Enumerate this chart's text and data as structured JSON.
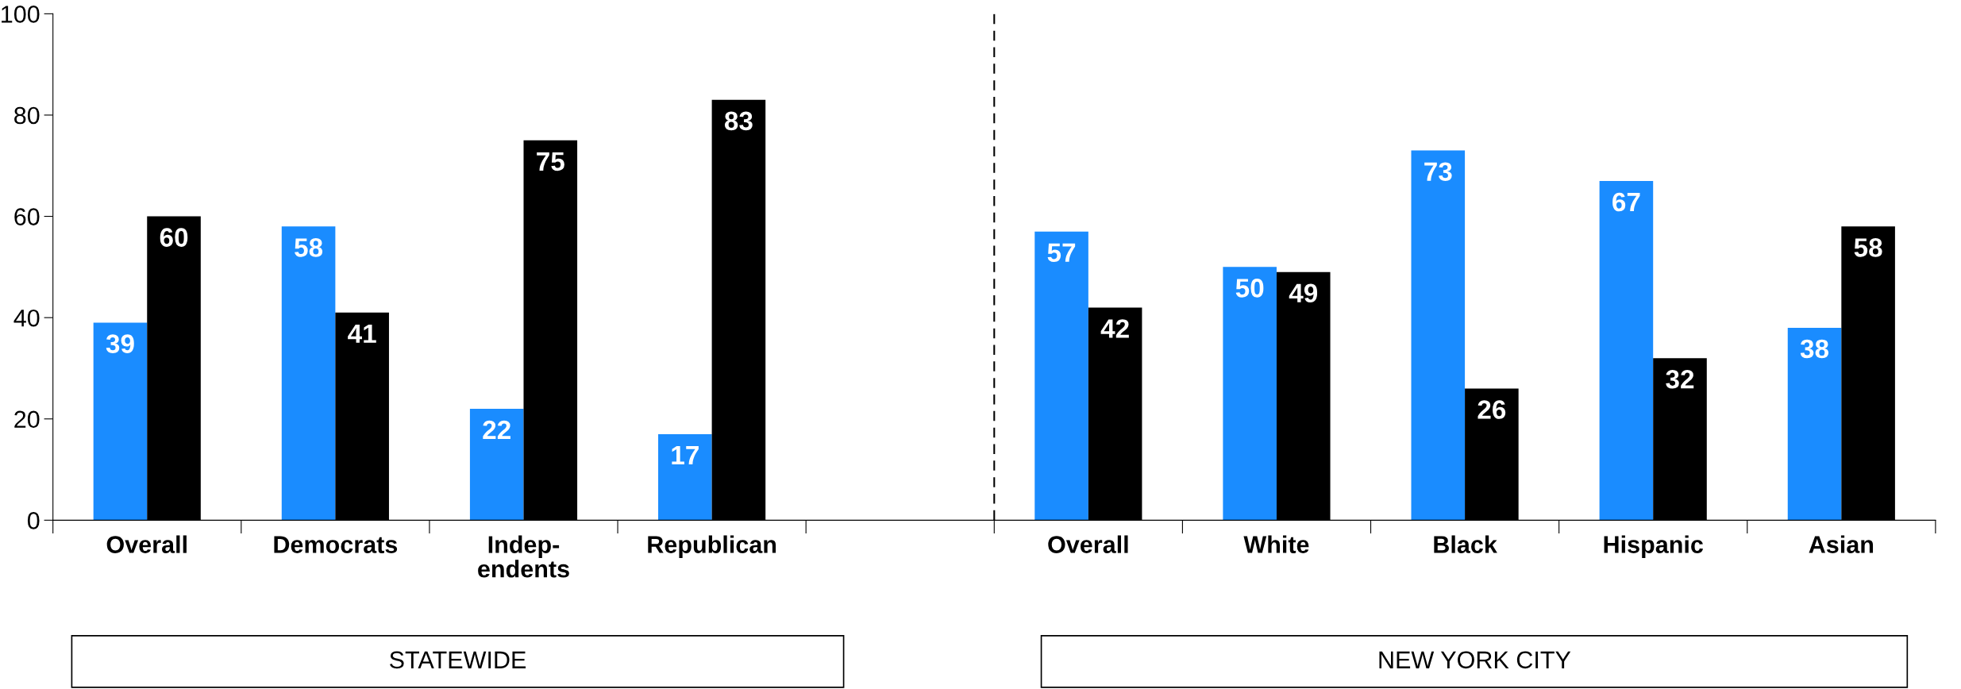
{
  "chart_data": {
    "type": "bar",
    "categories": [
      "Overall",
      "Democrats",
      "Indep-\nendents",
      "Republican",
      null,
      "Overall",
      "White",
      "Black",
      "Hispanic",
      "Asian"
    ],
    "series": [
      {
        "color": "#1a8cff",
        "values": [
          39,
          58,
          22,
          17,
          null,
          57,
          50,
          73,
          67,
          38
        ]
      },
      {
        "color": "#000000",
        "values": [
          60,
          41,
          75,
          83,
          null,
          42,
          49,
          26,
          32,
          58
        ]
      }
    ],
    "ylim": [
      0,
      100
    ],
    "yticks": [
      0,
      20,
      40,
      60,
      80,
      100
    ],
    "annotations": [
      "STATEWIDE",
      "NEW YORK CITY"
    ],
    "data_labels": true,
    "grid": false,
    "legend": false
  }
}
